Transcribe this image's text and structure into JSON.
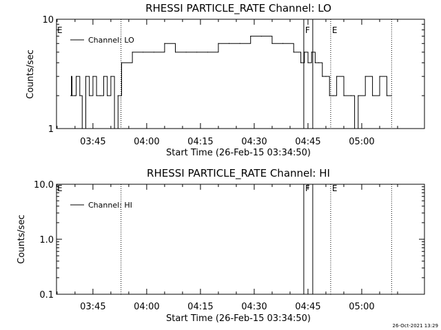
{
  "chart_data": [
    {
      "type": "line",
      "title": "RHESSI PARTICLE_RATE Channel: LO",
      "xlabel": "Start Time (26-Feb-15 03:34:50)",
      "ylabel": "Counts/sec",
      "yscale": "log",
      "xlim": [
        "03:34:50",
        "05:17:30"
      ],
      "ylim": [
        1,
        10
      ],
      "x_ticks": [
        "03:45",
        "04:00",
        "04:15",
        "04:30",
        "04:45",
        "05:00"
      ],
      "y_ticks": [
        "1",
        "10"
      ],
      "legend": {
        "label": "Channel: LO",
        "position": "top-left"
      },
      "markers": [
        {
          "label": "E",
          "time": "03:34:50",
          "style": "flag"
        },
        {
          "label": "",
          "time": "03:52:50",
          "style": "dotted"
        },
        {
          "label": "F",
          "time": "04:43:50",
          "style": "solid"
        },
        {
          "label": "",
          "time": "04:46:20",
          "style": "solid"
        },
        {
          "label": "E",
          "time": "04:51:20",
          "style": "dotted"
        },
        {
          "label": "",
          "time": "05:08:20",
          "style": "dotted"
        }
      ],
      "series": [
        {
          "name": "Channel: LO",
          "x": [
            "03:38:50",
            "03:39:00",
            "03:39:10",
            "03:40:00",
            "03:40:20",
            "03:41:20",
            "03:42:00",
            "03:43:00",
            "03:44:00",
            "03:45:00",
            "03:46:00",
            "03:47:00",
            "03:48:00",
            "03:49:00",
            "03:50:00",
            "03:51:00",
            "03:52:00",
            "03:52:50",
            "03:53:00",
            "03:56:00",
            "03:59:00",
            "04:02:00",
            "04:05:00",
            "04:08:00",
            "04:11:00",
            "04:14:00",
            "04:17:00",
            "04:20:00",
            "04:23:00",
            "04:26:00",
            "04:29:00",
            "04:32:00",
            "04:35:00",
            "04:38:00",
            "04:41:00",
            "04:43:00",
            "04:44:00",
            "04:45:00",
            "04:46:00",
            "04:47:00",
            "04:48:00",
            "04:49:00",
            "04:50:00",
            "04:51:00",
            "04:52:00",
            "04:53:00",
            "04:55:00",
            "04:57:00",
            "04:58:00",
            "04:59:00",
            "05:01:00",
            "05:03:00",
            "05:05:00",
            "05:07:00",
            "05:08:20"
          ],
          "values": [
            2,
            3,
            2,
            2,
            3,
            2,
            1,
            3,
            2,
            3,
            2,
            2,
            3,
            2,
            3,
            1,
            2,
            2,
            4,
            5,
            5,
            5,
            6,
            5,
            5,
            5,
            5,
            6,
            6,
            6,
            7,
            7,
            6,
            6,
            5,
            4,
            5,
            4,
            5,
            4,
            4,
            3,
            3,
            2,
            2,
            3,
            2,
            2,
            1,
            2,
            3,
            2,
            3,
            2,
            2
          ]
        }
      ]
    },
    {
      "type": "line",
      "title": "RHESSI PARTICLE_RATE Channel: HI",
      "xlabel": "Start Time (26-Feb-15 03:34:50)",
      "ylabel": "Counts/sec",
      "yscale": "log",
      "xlim": [
        "03:34:50",
        "05:17:30"
      ],
      "ylim": [
        0.1,
        10
      ],
      "x_ticks": [
        "03:45",
        "04:00",
        "04:15",
        "04:30",
        "04:45",
        "05:00"
      ],
      "y_ticks": [
        "0.1",
        "1.0",
        "10.0"
      ],
      "legend": {
        "label": "Channel: HI",
        "position": "top-left"
      },
      "markers": [
        {
          "label": "E",
          "time": "03:34:50",
          "style": "flag"
        },
        {
          "label": "",
          "time": "03:52:50",
          "style": "dotted"
        },
        {
          "label": "F",
          "time": "04:43:50",
          "style": "solid"
        },
        {
          "label": "",
          "time": "04:46:20",
          "style": "solid"
        },
        {
          "label": "E",
          "time": "04:51:20",
          "style": "dotted"
        },
        {
          "label": "",
          "time": "05:08:20",
          "style": "dotted"
        }
      ],
      "series": [
        {
          "name": "Channel: HI",
          "x": [],
          "values": []
        }
      ]
    }
  ],
  "footer": {
    "timestamp": "26-Oct-2021 13:29"
  }
}
